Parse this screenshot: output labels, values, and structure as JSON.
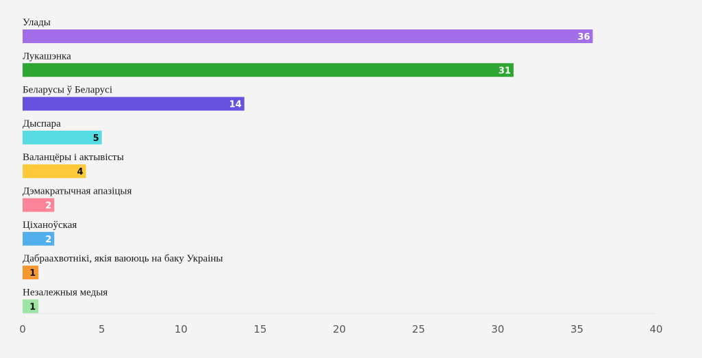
{
  "chart_data": {
    "type": "bar",
    "orientation": "horizontal",
    "title": "",
    "xlabel": "",
    "ylabel": "",
    "xlim": [
      0,
      40
    ],
    "xticks": [
      0,
      5,
      10,
      15,
      20,
      25,
      30,
      35,
      40
    ],
    "grid": false,
    "legend": "none",
    "categories": [
      "Улады",
      "Лукашэнка",
      "Беларусы ў Беларусі",
      "Дыспара",
      "Валанцёры і актывісты",
      "Дэмакратычная апазіцыя",
      "Ціханоўская",
      "Дабраахвотнікі, якія ваююць на баку Украіны",
      "Незалежныя медыя"
    ],
    "values": [
      36,
      31,
      14,
      5,
      4,
      2,
      2,
      1,
      1
    ],
    "colors": [
      "#a26fe8",
      "#2ea632",
      "#6552e1",
      "#55dbe3",
      "#fcc93a",
      "#fb8499",
      "#50afec",
      "#f8962f",
      "#9de6a4"
    ],
    "value_label_colors": [
      "#ffffff",
      "#ffffff",
      "#ffffff",
      "#111111",
      "#111111",
      "#ffffff",
      "#ffffff",
      "#111111",
      "#111111"
    ]
  }
}
